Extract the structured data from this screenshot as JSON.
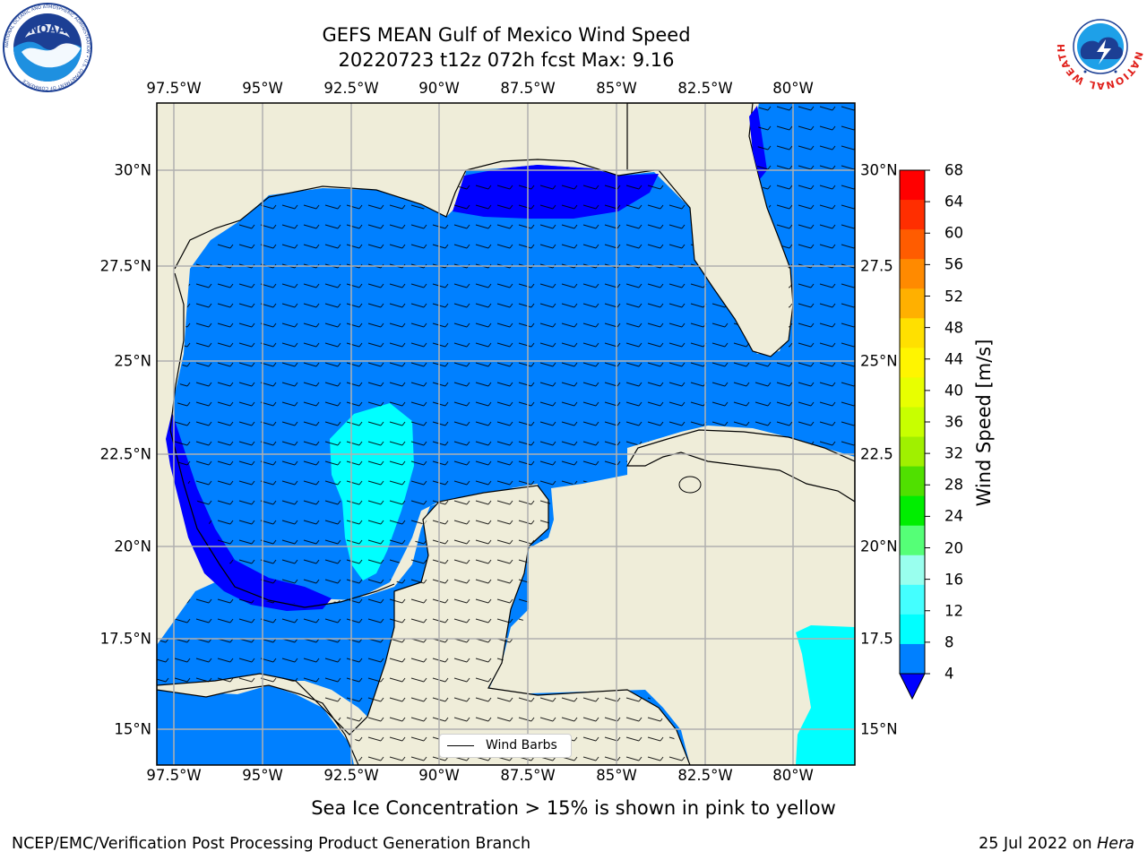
{
  "header": {
    "title_line1": "GEFS MEAN Gulf of Mexico Wind Speed",
    "title_line2": "20220723 t12z 072h fcst   Max: 9.16"
  },
  "logos": {
    "noara": {
      "icon": "noaa-logo",
      "text": "NOAA",
      "ring_text": "NATIONAL OCEANIC AND ATMOSPHERIC ADMINISTRATION • U.S. DEPARTMENT OF COMMERCE"
    },
    "nws": {
      "icon": "nws-logo",
      "ring_text": "NATIONAL WEATHER SERVICE"
    }
  },
  "map": {
    "lon_ticks": [
      "97.5°W",
      "95°W",
      "92.5°W",
      "90°W",
      "87.5°W",
      "85°W",
      "82.5°W",
      "80°W"
    ],
    "lat_ticks_left": [
      "30°N",
      "27.5°N",
      "25°N",
      "22.5°N",
      "20°N",
      "17.5°N",
      "15°N"
    ],
    "lat_ticks_right": [
      "30°N",
      "27.5",
      "25°N",
      "22.5",
      "20°N",
      "17.5",
      "15°N"
    ],
    "legend_label": "Wind Barbs",
    "colors": {
      "land": "#efedd9",
      "level_4_8": "#0080ff",
      "level_0_4": "#0000ff",
      "level_8_12": "#00ffff",
      "grid": "#b0b0b0"
    }
  },
  "colorbar": {
    "label": "Wind Speed [m/s]",
    "ticks": [
      "68",
      "64",
      "60",
      "56",
      "52",
      "48",
      "44",
      "40",
      "36",
      "32",
      "28",
      "24",
      "20",
      "16",
      "12",
      "8",
      "4"
    ],
    "colors_top_to_bottom": [
      "#ff0000",
      "#ff2e00",
      "#ff5c00",
      "#ff8a00",
      "#ffb000",
      "#ffe000",
      "#fff500",
      "#e8ff00",
      "#c8ff00",
      "#a0f000",
      "#50e000",
      "#00ee00",
      "#55ff77",
      "#99ffee",
      "#44ffff",
      "#00ffff",
      "#0080ff"
    ],
    "extend_color": "#0000ff"
  },
  "caption": "Sea Ice Concentration > 15% is shown in pink to yellow",
  "footer": {
    "left": "NCEP/EMC/Verification Post Processing Product Generation Branch",
    "right_date": "25 Jul 2022 on ",
    "right_host": "Hera"
  }
}
